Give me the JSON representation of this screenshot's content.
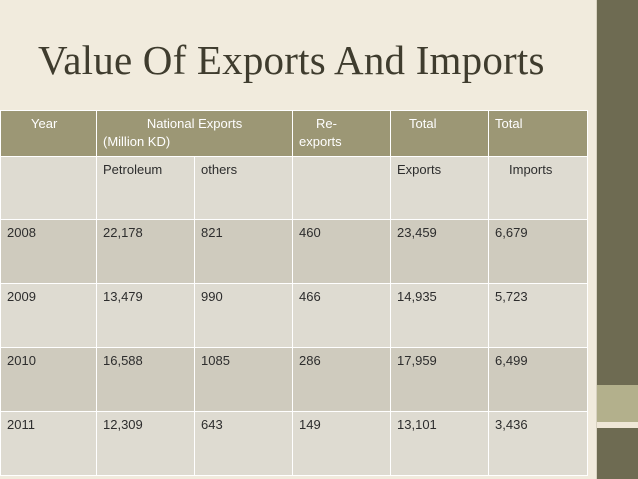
{
  "slide": {
    "title": "Value Of Exports And Imports"
  },
  "table": {
    "header": {
      "year": "Year",
      "national_exports_line1": "National Exports",
      "national_exports_line2": "(Million KD)",
      "reexports_line1": "Re-",
      "reexports_line2": "exports",
      "total_exports": "Total",
      "total_imports": "Total"
    },
    "subheader": {
      "year": "",
      "petroleum": "Petroleum",
      "others": "others",
      "reexports": "",
      "exports": "Exports",
      "imports": "Imports"
    },
    "rows": [
      {
        "year": "2008",
        "petroleum": "22,178",
        "others": "821",
        "reexports": "460",
        "exports": "23,459",
        "imports": "6,679"
      },
      {
        "year": "2009",
        "petroleum": "13,479",
        "others": "990",
        "reexports": "466",
        "exports": "14,935",
        "imports": "5,723"
      },
      {
        "year": "2010",
        "petroleum": "16,588",
        "others": "1085",
        "reexports": "286",
        "exports": "17,959",
        "imports": "6,499"
      },
      {
        "year": "2011",
        "petroleum": "12,309",
        "others": "643",
        "reexports": "149",
        "exports": "13,101",
        "imports": "3,436"
      }
    ]
  },
  "colors": {
    "header_bg": "#9c9775",
    "row_light": "#dedbd1",
    "row_dark": "#cfcbbe",
    "side_bar": "#6e6b52",
    "title_text": "#3f3c2e"
  }
}
